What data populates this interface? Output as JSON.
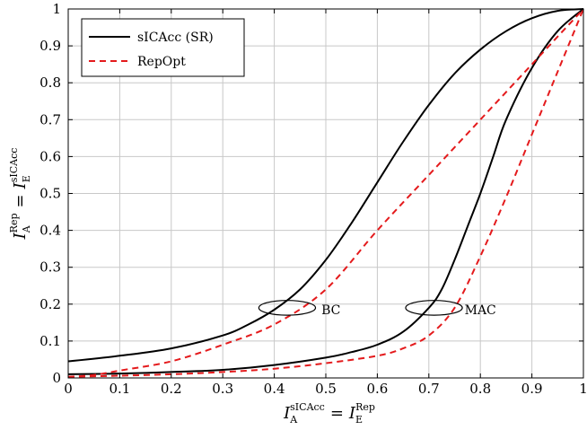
{
  "chart_data": {
    "type": "line",
    "xlabel": {
      "main": "I",
      "sub": "A",
      "sup": "sICAcc",
      "eq": "=",
      "main2": "I",
      "sub2": "E",
      "sup2": "Rep"
    },
    "ylabel": {
      "main": "I",
      "sub": "A",
      "sup": "Rep",
      "eq": "=",
      "main2": "I",
      "sub2": "E",
      "sup2": "sICAcc"
    },
    "xlim": [
      0,
      1
    ],
    "ylim": [
      0,
      1
    ],
    "xticks": [
      "0",
      "0.1",
      "0.2",
      "0.3",
      "0.4",
      "0.5",
      "0.6",
      "0.7",
      "0.8",
      "0.9",
      "1"
    ],
    "yticks": [
      "0",
      "0.1",
      "0.2",
      "0.3",
      "0.4",
      "0.5",
      "0.6",
      "0.7",
      "0.8",
      "0.9",
      "1"
    ],
    "grid": true,
    "legend_position": "top-left",
    "series": [
      {
        "name": "sICAcc (SR)",
        "color": "#000000",
        "style": "solid",
        "curves": [
          {
            "label": "BC",
            "x": [
              0,
              0.1,
              0.2,
              0.3,
              0.35,
              0.4,
              0.45,
              0.5,
              0.55,
              0.6,
              0.65,
              0.7,
              0.75,
              0.8,
              0.85,
              0.9,
              0.95,
              1
            ],
            "y": [
              0.045,
              0.06,
              0.08,
              0.115,
              0.145,
              0.185,
              0.24,
              0.32,
              0.42,
              0.53,
              0.64,
              0.74,
              0.825,
              0.89,
              0.94,
              0.975,
              0.995,
              1
            ]
          },
          {
            "label": "MAC",
            "x": [
              0,
              0.1,
              0.2,
              0.3,
              0.4,
              0.5,
              0.55,
              0.6,
              0.65,
              0.7,
              0.725,
              0.75,
              0.775,
              0.8,
              0.825,
              0.85,
              0.9,
              0.95,
              1
            ],
            "y": [
              0.01,
              0.012,
              0.016,
              0.022,
              0.035,
              0.055,
              0.07,
              0.09,
              0.125,
              0.19,
              0.24,
              0.32,
              0.41,
              0.5,
              0.6,
              0.7,
              0.84,
              0.94,
              1
            ]
          }
        ]
      },
      {
        "name": "RepOpt",
        "color": "#e41a1c",
        "style": "dashed",
        "curves": [
          {
            "label": "BC",
            "x": [
              0,
              0.05,
              0.1,
              0.2,
              0.3,
              0.4,
              0.5,
              0.6,
              0.7,
              0.8,
              0.9,
              1
            ],
            "y": [
              0.003,
              0.008,
              0.02,
              0.045,
              0.09,
              0.145,
              0.24,
              0.4,
              0.55,
              0.7,
              0.85,
              1
            ]
          },
          {
            "label": "MAC",
            "x": [
              0,
              0.1,
              0.2,
              0.3,
              0.4,
              0.5,
              0.6,
              0.65,
              0.7,
              0.75,
              0.8,
              0.85,
              0.9,
              0.95,
              1
            ],
            "y": [
              0.003,
              0.006,
              0.01,
              0.016,
              0.025,
              0.04,
              0.06,
              0.08,
              0.115,
              0.19,
              0.33,
              0.49,
              0.66,
              0.83,
              1
            ]
          }
        ]
      }
    ],
    "annotations": [
      {
        "text": "BC",
        "ellipse_center": [
          0.425,
          0.19
        ],
        "ellipse_radii": [
          0.055,
          0.02
        ],
        "text_at": [
          0.51,
          0.185
        ]
      },
      {
        "text": "MAC",
        "ellipse_center": [
          0.71,
          0.19
        ],
        "ellipse_radii": [
          0.055,
          0.02
        ],
        "text_at": [
          0.8,
          0.185
        ]
      }
    ]
  }
}
